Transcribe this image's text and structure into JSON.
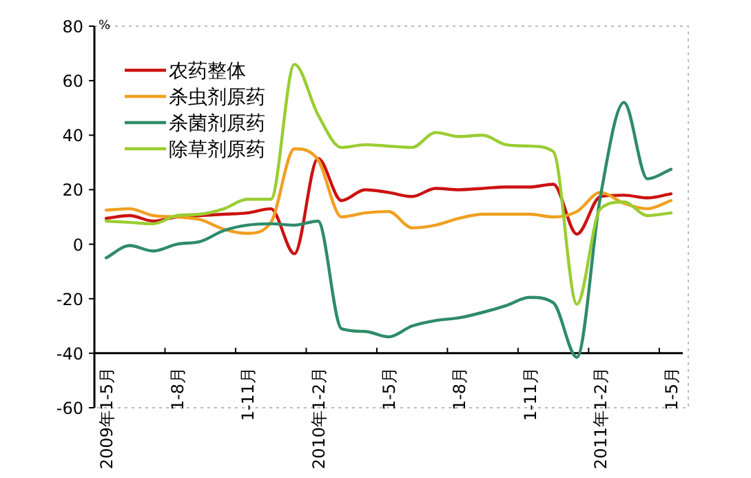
{
  "chart_data": {
    "type": "line",
    "ylabel": "%",
    "ylim": [
      -60,
      80
    ],
    "yticks": [
      -60,
      -40,
      -20,
      0,
      20,
      40,
      60,
      80
    ],
    "grid": false,
    "legend": "top left",
    "marker": "none",
    "line_style": "solid",
    "categories": [
      "2009年1-5月",
      null,
      null,
      "1-8月",
      null,
      null,
      "1-11月",
      null,
      null,
      "2010年1-2月",
      null,
      null,
      "1-5月",
      null,
      null,
      "1-8月",
      null,
      null,
      "1-11月",
      null,
      null,
      "2011年1-2月",
      null,
      null,
      "1-5月"
    ],
    "ref_lines": [
      {
        "axis": "y",
        "value": -40,
        "color": "#000000"
      }
    ],
    "series": [
      {
        "name": "农药整体",
        "color": "#cc1111",
        "values": [
          9.5,
          10.5,
          8.5,
          10,
          10.5,
          11,
          11.5,
          13,
          -3.5,
          31.5,
          16,
          20,
          19,
          17.5,
          20.5,
          20,
          20.5,
          21,
          21,
          22,
          3.7,
          17.5,
          18,
          17,
          18.5
        ]
      },
      {
        "name": "杀虫剂原药",
        "color": "#f0a020",
        "values": [
          12.5,
          13,
          10.5,
          10,
          9,
          5.5,
          4,
          8,
          35,
          31,
          10,
          11.5,
          12,
          6,
          7,
          9.5,
          11,
          11,
          11,
          10,
          12,
          19,
          15,
          13,
          16
        ]
      },
      {
        "name": "杀菌剂原药",
        "color": "#2e8b6a",
        "values": [
          -5,
          -0.5,
          -2.5,
          0,
          1,
          5,
          7,
          7.5,
          7,
          8.5,
          -31,
          -32,
          -34,
          -30,
          -28,
          -27,
          -25,
          -22.5,
          -19.5,
          -21.5,
          -41.5,
          17.5,
          52,
          24,
          27.5
        ]
      },
      {
        "name": "除草剂原药",
        "color": "#9acd32",
        "values": [
          8.5,
          8,
          7.5,
          10.5,
          11,
          13,
          16.5,
          16.5,
          66,
          47.5,
          35.5,
          36.5,
          36,
          35.5,
          41,
          39.5,
          40,
          36.5,
          36,
          34,
          -22,
          13,
          15.5,
          10.5,
          11.5
        ]
      }
    ]
  }
}
